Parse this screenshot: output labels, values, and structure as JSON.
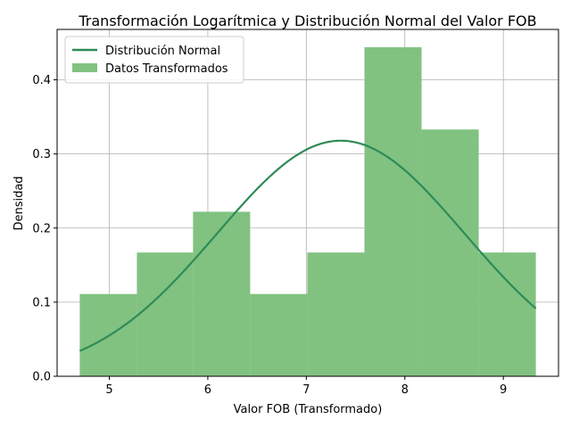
{
  "chart_data": {
    "type": "bar",
    "title": "Transformación Logarítmica y Distribución Normal del Valor FOB",
    "xlabel": "Valor FOB (Transformado)",
    "ylabel": "Densidad",
    "xlim": [
      4.47,
      9.56
    ],
    "ylim": [
      0,
      0.468
    ],
    "xticks": [
      5,
      6,
      7,
      8,
      9
    ],
    "yticks": [
      0.0,
      0.1,
      0.2,
      0.3,
      0.4
    ],
    "grid": true,
    "legend_position": "top-left",
    "histogram": {
      "name": "Datos Transformados",
      "color": "#81c281",
      "bin_edges": [
        4.7,
        5.28,
        5.85,
        6.43,
        7.01,
        7.59,
        8.17,
        8.75,
        9.33
      ],
      "values": [
        0.111,
        0.167,
        0.222,
        0.111,
        0.167,
        0.444,
        0.333,
        0.167
      ]
    },
    "normal_curve": {
      "name": "Distribución Normal",
      "color": "#2e8b57",
      "mean": 7.35,
      "std": 1.255
    }
  }
}
